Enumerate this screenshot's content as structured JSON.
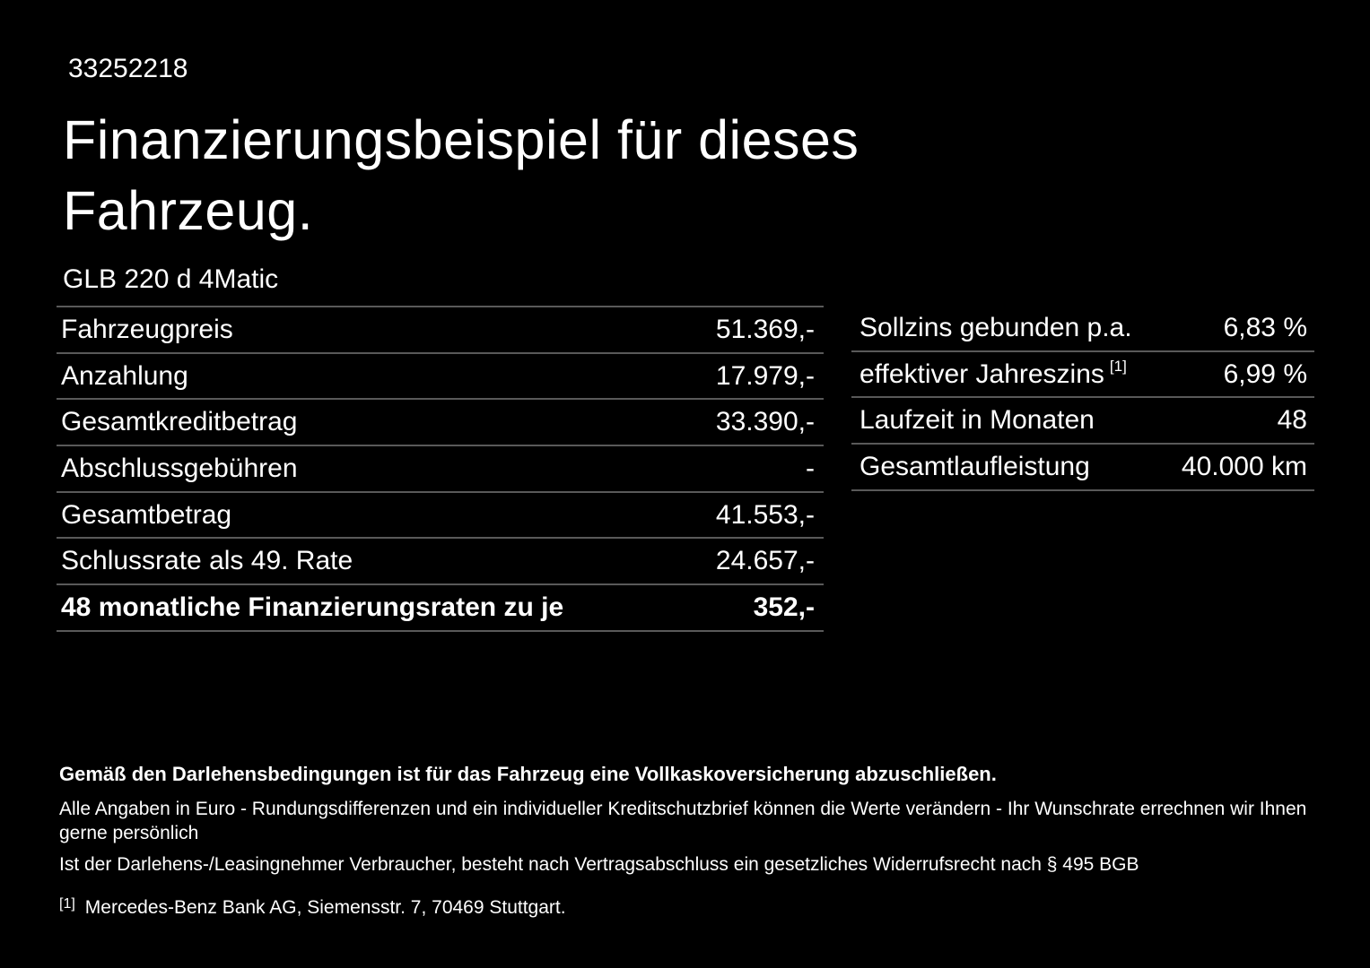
{
  "header": {
    "document_id": "33252218",
    "title_line1": "Finanzierungsbeispiel für dieses",
    "title_line2": "Fahrzeug.",
    "vehicle_model": "GLB 220 d 4Matic"
  },
  "left_table": {
    "rows": [
      {
        "label": "Fahrzeugpreis",
        "value": "51.369,-"
      },
      {
        "label": "Anzahlung",
        "value": "17.979,-"
      },
      {
        "label": "Gesamtkreditbetrag",
        "value": "33.390,-"
      },
      {
        "label": "Abschlussgebühren",
        "value": "-"
      },
      {
        "label": "Gesamtbetrag",
        "value": "41.553,-"
      },
      {
        "label": "Schlussrate als 49. Rate",
        "value": "24.657,-"
      },
      {
        "label": "48 monatliche Finanzierungsraten zu je",
        "value": "352,-"
      }
    ]
  },
  "right_table": {
    "rows": [
      {
        "label": "Sollzins gebunden p.a.",
        "value": "6,83 %"
      },
      {
        "label": "effektiver Jahreszins",
        "sup": "[1]",
        "value": "6,99 %"
      },
      {
        "label": "Laufzeit in Monaten",
        "value": "48"
      },
      {
        "label": "Gesamtlaufleistung",
        "value": "40.000 km"
      }
    ]
  },
  "footer": {
    "insurance_note": "Gemäß den Darlehensbedingungen ist für das Fahrzeug eine Vollkaskoversicherung abzuschließen.",
    "note_line1": "Alle Angaben in Euro - Rundungsdifferenzen und ein individueller Kreditschutzbrief können die Werte verändern - Ihr Wunschrate errechnen wir Ihnen gerne persönlich",
    "note_line2": "Ist der Darlehens-/Leasingnehmer Verbraucher, besteht nach Vertragsabschluss ein gesetzliches Widerrufsrecht nach § 495 BGB",
    "footnote_marker": "[1]",
    "footnote_text": "Mercedes-Benz Bank AG, Siemensstr. 7, 70469 Stuttgart."
  },
  "colors": {
    "background": "#000000",
    "text": "#ffffff",
    "divider": "#595959"
  }
}
